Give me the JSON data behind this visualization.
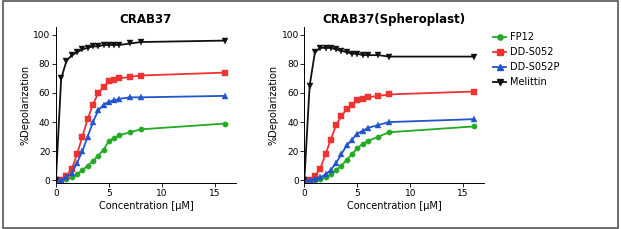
{
  "title_left": "CRAB37",
  "title_right": "CRAB37(Spheroplast)",
  "xlabel": "Concentration [μM]",
  "ylabel": "%Depolarization",
  "xlim": [
    0,
    17
  ],
  "ylim": [
    -2,
    105
  ],
  "xticks": [
    0,
    5,
    10,
    15
  ],
  "yticks": [
    0,
    20,
    40,
    60,
    80,
    100
  ],
  "legend_labels": [
    "FP12",
    "DD-S052",
    "DD-S052P",
    "Melittin"
  ],
  "colors": [
    "#22aa22",
    "#ee3333",
    "#2255cc",
    "#111111"
  ],
  "markers": [
    "o",
    "s",
    "^",
    "v"
  ],
  "left_x": [
    0,
    0.5,
    1,
    1.5,
    2,
    2.5,
    3,
    3.5,
    4,
    4.5,
    5,
    5.5,
    6,
    7,
    8,
    16
  ],
  "left_FP12": [
    0,
    0,
    1,
    2,
    4,
    7,
    10,
    13,
    17,
    21,
    27,
    29,
    31,
    33,
    35,
    39
  ],
  "left_DDS052": [
    0,
    0,
    3,
    8,
    18,
    30,
    42,
    52,
    60,
    64,
    68,
    69,
    70,
    71,
    72,
    74
  ],
  "left_DDS052P": [
    0,
    0,
    2,
    5,
    12,
    20,
    30,
    40,
    48,
    52,
    54,
    55,
    56,
    57,
    57,
    58
  ],
  "left_Melittin": [
    0,
    70,
    82,
    86,
    88,
    90,
    91,
    92,
    92,
    93,
    93,
    93,
    93,
    94,
    95,
    96
  ],
  "right_x": [
    0,
    0.5,
    1,
    1.5,
    2,
    2.5,
    3,
    3.5,
    4,
    4.5,
    5,
    5.5,
    6,
    7,
    8,
    16
  ],
  "right_FP12": [
    0,
    0,
    0,
    1,
    2,
    4,
    7,
    10,
    14,
    18,
    22,
    25,
    27,
    30,
    33,
    37
  ],
  "right_DDS052": [
    0,
    0,
    3,
    8,
    18,
    28,
    38,
    44,
    49,
    52,
    55,
    56,
    57,
    58,
    59,
    61
  ],
  "right_DDS052P": [
    0,
    0,
    1,
    2,
    4,
    7,
    12,
    18,
    24,
    28,
    32,
    34,
    36,
    38,
    40,
    42
  ],
  "right_Melittin": [
    0,
    65,
    88,
    91,
    91,
    91,
    90,
    89,
    88,
    87,
    87,
    86,
    86,
    86,
    85,
    85
  ],
  "background_color": "#ffffff",
  "linewidth": 1.3,
  "markersize": 3.8,
  "title_fontsize": 8.5,
  "label_fontsize": 7.0,
  "tick_fontsize": 6.5,
  "legend_fontsize": 7.0
}
